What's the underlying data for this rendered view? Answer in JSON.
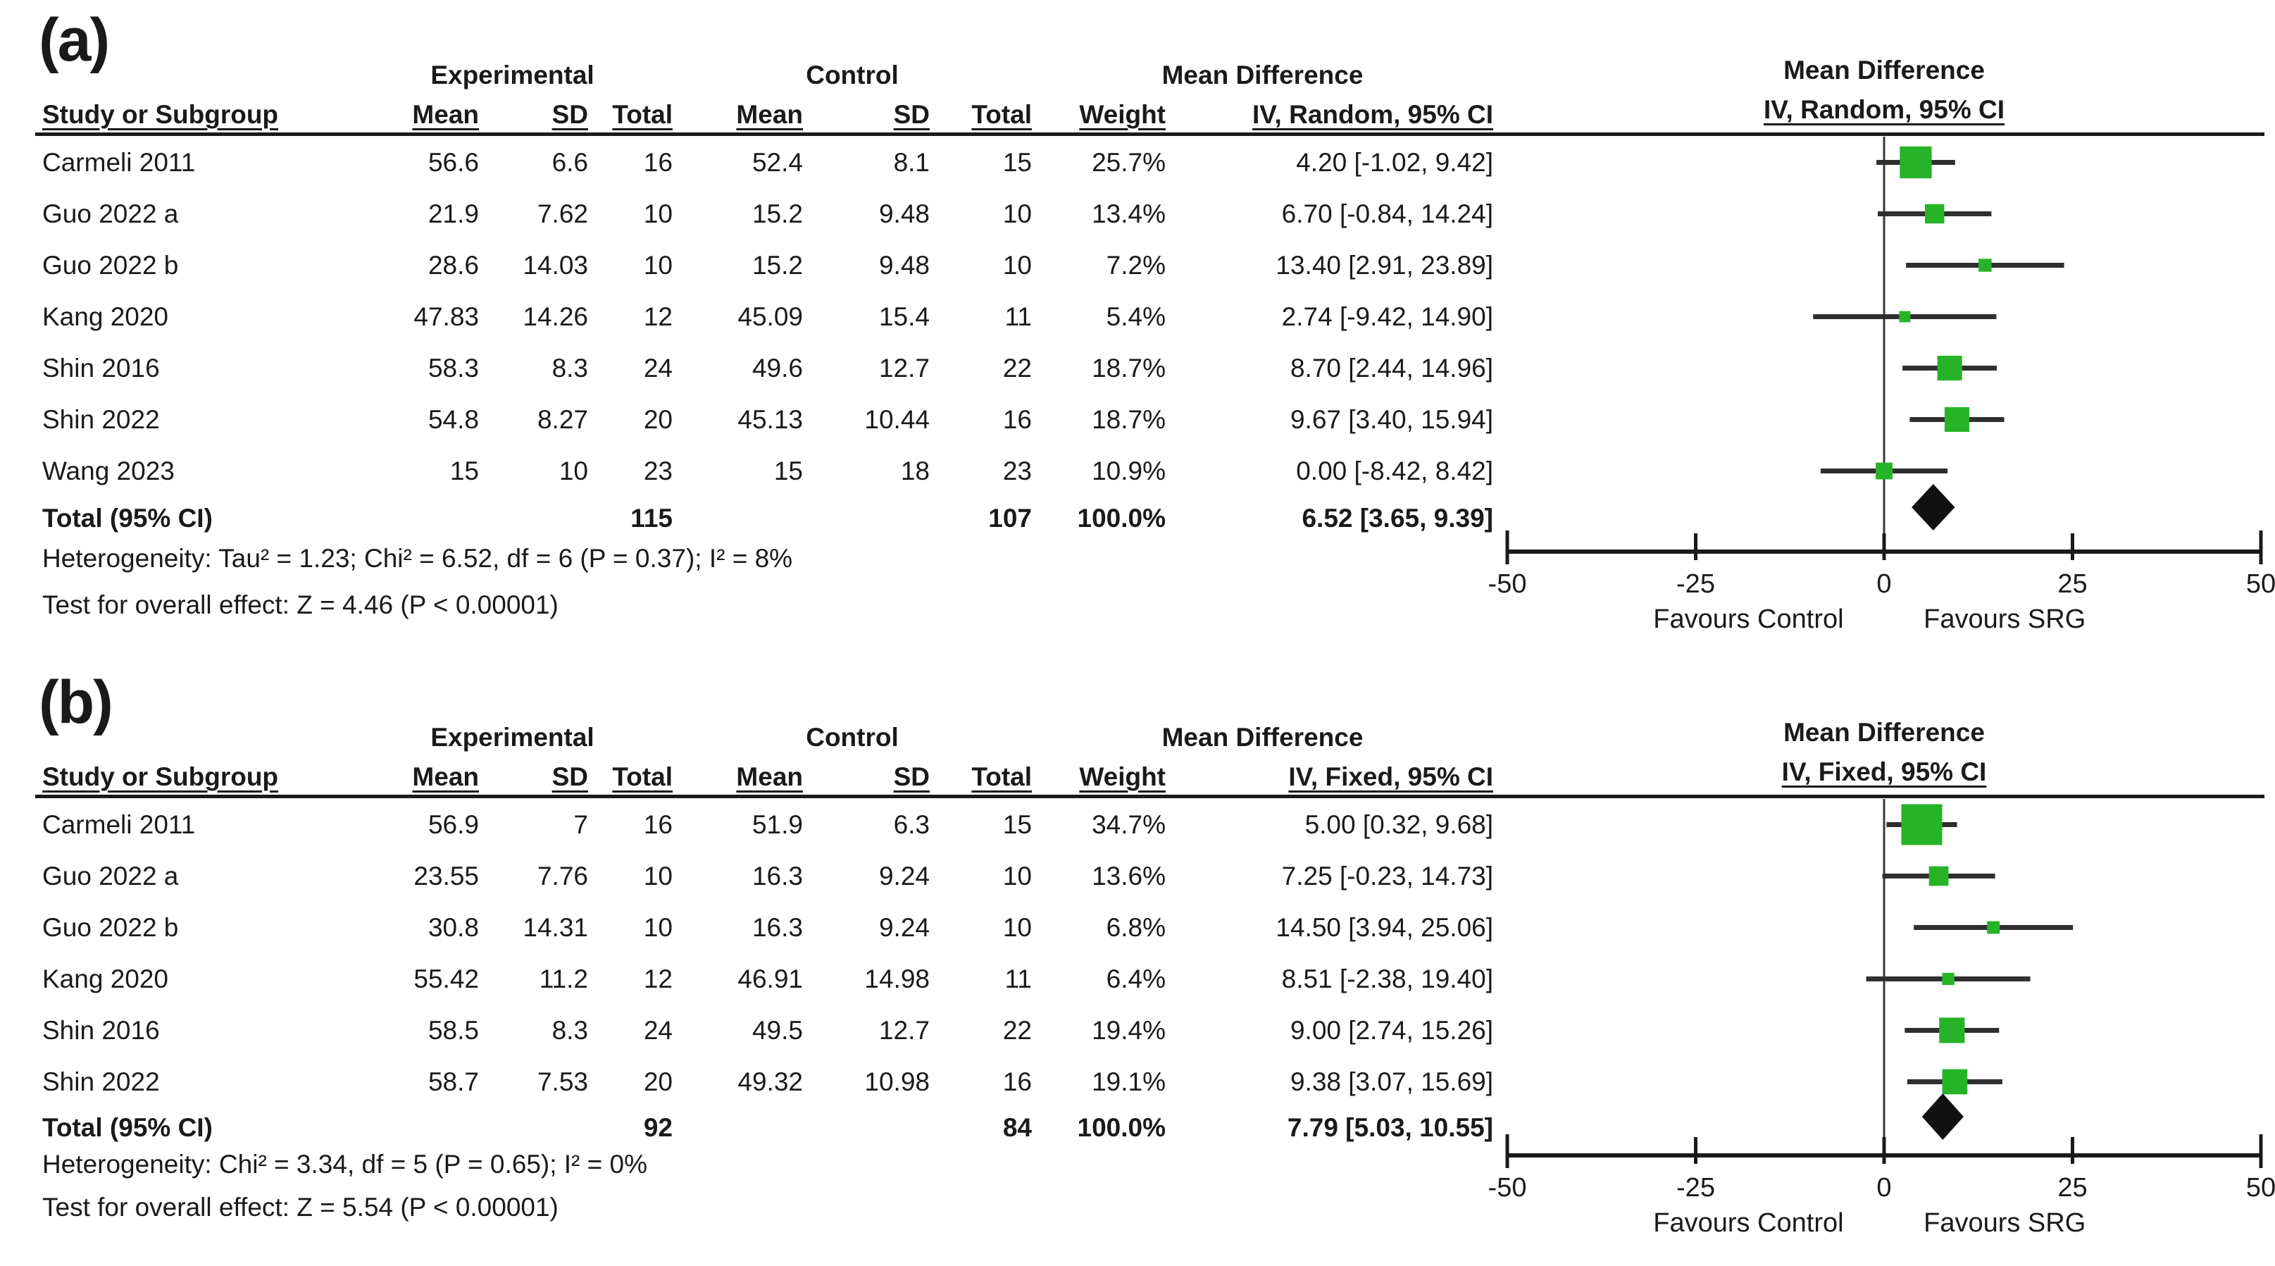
{
  "colors": {
    "background": "#ffffff",
    "text": "#1a1a1a",
    "marker_green": "#27b327",
    "ci_line": "#2f2f2f",
    "diamond": "#111111",
    "axis": "#1a1a1a"
  },
  "chart_data": {
    "type": "forest",
    "axis": {
      "range": [
        -50,
        50
      ],
      "ticks": [
        -50,
        -25,
        0,
        25,
        50
      ],
      "left_label": "Favours Control",
      "right_label": "Favours SRG"
    },
    "panels": [
      {
        "label": "(a)",
        "model": "Random",
        "group_headers": {
          "experimental": "Experimental",
          "control": "Control",
          "md_stats": "Mean Difference",
          "md_plot": "Mean Difference"
        },
        "columns": [
          "Study or Subgroup",
          "Mean",
          "SD",
          "Total",
          "Mean",
          "SD",
          "Total",
          "Weight",
          "IV, Random, 95% CI"
        ],
        "plot_subheader": "IV, Random, 95% CI",
        "studies": [
          {
            "study": "Carmeli 2011",
            "exp_mean": "56.6",
            "exp_sd": "6.6",
            "exp_total": "16",
            "ctl_mean": "52.4",
            "ctl_sd": "8.1",
            "ctl_total": "15",
            "weight": "25.7%",
            "ci_text": "4.20 [-1.02, 9.42]",
            "md": 4.2,
            "lo": -1.02,
            "hi": 9.42,
            "weight_value": 25.7
          },
          {
            "study": "Guo 2022 a",
            "exp_mean": "21.9",
            "exp_sd": "7.62",
            "exp_total": "10",
            "ctl_mean": "15.2",
            "ctl_sd": "9.48",
            "ctl_total": "10",
            "weight": "13.4%",
            "ci_text": "6.70 [-0.84, 14.24]",
            "md": 6.7,
            "lo": -0.84,
            "hi": 14.24,
            "weight_value": 13.4
          },
          {
            "study": "Guo 2022 b",
            "exp_mean": "28.6",
            "exp_sd": "14.03",
            "exp_total": "10",
            "ctl_mean": "15.2",
            "ctl_sd": "9.48",
            "ctl_total": "10",
            "weight": "7.2%",
            "ci_text": "13.40 [2.91, 23.89]",
            "md": 13.4,
            "lo": 2.91,
            "hi": 23.89,
            "weight_value": 7.2
          },
          {
            "study": "Kang 2020",
            "exp_mean": "47.83",
            "exp_sd": "14.26",
            "exp_total": "12",
            "ctl_mean": "45.09",
            "ctl_sd": "15.4",
            "ctl_total": "11",
            "weight": "5.4%",
            "ci_text": "2.74 [-9.42, 14.90]",
            "md": 2.74,
            "lo": -9.42,
            "hi": 14.9,
            "weight_value": 5.4
          },
          {
            "study": "Shin 2016",
            "exp_mean": "58.3",
            "exp_sd": "8.3",
            "exp_total": "24",
            "ctl_mean": "49.6",
            "ctl_sd": "12.7",
            "ctl_total": "22",
            "weight": "18.7%",
            "ci_text": "8.70 [2.44, 14.96]",
            "md": 8.7,
            "lo": 2.44,
            "hi": 14.96,
            "weight_value": 18.7
          },
          {
            "study": "Shin 2022",
            "exp_mean": "54.8",
            "exp_sd": "8.27",
            "exp_total": "20",
            "ctl_mean": "45.13",
            "ctl_sd": "10.44",
            "ctl_total": "16",
            "weight": "18.7%",
            "ci_text": "9.67 [3.40, 15.94]",
            "md": 9.67,
            "lo": 3.4,
            "hi": 15.94,
            "weight_value": 18.7
          },
          {
            "study": "Wang 2023",
            "exp_mean": "15",
            "exp_sd": "10",
            "exp_total": "23",
            "ctl_mean": "15",
            "ctl_sd": "18",
            "ctl_total": "23",
            "weight": "10.9%",
            "ci_text": "0.00 [-8.42, 8.42]",
            "md": 0.0,
            "lo": -8.42,
            "hi": 8.42,
            "weight_value": 10.9
          }
        ],
        "total": {
          "label": "Total (95% CI)",
          "exp_total": "115",
          "ctl_total": "107",
          "weight": "100.0%",
          "ci_text": "6.52 [3.65, 9.39]",
          "md": 6.52,
          "lo": 3.65,
          "hi": 9.39
        },
        "heterogeneity": "Heterogeneity: Tau² = 1.23; Chi² = 6.52, df = 6 (P = 0.37); I² = 8%",
        "overall_test": "Test for overall effect: Z = 4.46 (P < 0.00001)"
      },
      {
        "label": "(b)",
        "model": "Fixed",
        "group_headers": {
          "experimental": "Experimental",
          "control": "Control",
          "md_stats": "Mean Difference",
          "md_plot": "Mean Difference"
        },
        "columns": [
          "Study or Subgroup",
          "Mean",
          "SD",
          "Total",
          "Mean",
          "SD",
          "Total",
          "Weight",
          "IV, Fixed, 95% CI"
        ],
        "plot_subheader": "IV, Fixed, 95% CI",
        "studies": [
          {
            "study": "Carmeli 2011",
            "exp_mean": "56.9",
            "exp_sd": "7",
            "exp_total": "16",
            "ctl_mean": "51.9",
            "ctl_sd": "6.3",
            "ctl_total": "15",
            "weight": "34.7%",
            "ci_text": "5.00 [0.32, 9.68]",
            "md": 5.0,
            "lo": 0.32,
            "hi": 9.68,
            "weight_value": 34.7
          },
          {
            "study": "Guo 2022 a",
            "exp_mean": "23.55",
            "exp_sd": "7.76",
            "exp_total": "10",
            "ctl_mean": "16.3",
            "ctl_sd": "9.24",
            "ctl_total": "10",
            "weight": "13.6%",
            "ci_text": "7.25 [-0.23, 14.73]",
            "md": 7.25,
            "lo": -0.23,
            "hi": 14.73,
            "weight_value": 13.6
          },
          {
            "study": "Guo 2022 b",
            "exp_mean": "30.8",
            "exp_sd": "14.31",
            "exp_total": "10",
            "ctl_mean": "16.3",
            "ctl_sd": "9.24",
            "ctl_total": "10",
            "weight": "6.8%",
            "ci_text": "14.50 [3.94, 25.06]",
            "md": 14.5,
            "lo": 3.94,
            "hi": 25.06,
            "weight_value": 6.8
          },
          {
            "study": "Kang 2020",
            "exp_mean": "55.42",
            "exp_sd": "11.2",
            "exp_total": "12",
            "ctl_mean": "46.91",
            "ctl_sd": "14.98",
            "ctl_total": "11",
            "weight": "6.4%",
            "ci_text": "8.51 [-2.38, 19.40]",
            "md": 8.51,
            "lo": -2.38,
            "hi": 19.4,
            "weight_value": 6.4
          },
          {
            "study": "Shin 2016",
            "exp_mean": "58.5",
            "exp_sd": "8.3",
            "exp_total": "24",
            "ctl_mean": "49.5",
            "ctl_sd": "12.7",
            "ctl_total": "22",
            "weight": "19.4%",
            "ci_text": "9.00 [2.74, 15.26]",
            "md": 9.0,
            "lo": 2.74,
            "hi": 15.26,
            "weight_value": 19.4
          },
          {
            "study": "Shin 2022",
            "exp_mean": "58.7",
            "exp_sd": "7.53",
            "exp_total": "20",
            "ctl_mean": "49.32",
            "ctl_sd": "10.98",
            "ctl_total": "16",
            "weight": "19.1%",
            "ci_text": "9.38 [3.07, 15.69]",
            "md": 9.38,
            "lo": 3.07,
            "hi": 15.69,
            "weight_value": 19.1
          }
        ],
        "total": {
          "label": "Total (95% CI)",
          "exp_total": "92",
          "ctl_total": "84",
          "weight": "100.0%",
          "ci_text": "7.79 [5.03, 10.55]",
          "md": 7.79,
          "lo": 5.03,
          "hi": 10.55
        },
        "heterogeneity": "Heterogeneity: Chi² = 3.34, df = 5 (P = 0.65); I² = 0%",
        "overall_test": "Test for overall effect: Z = 5.54 (P < 0.00001)"
      }
    ]
  }
}
